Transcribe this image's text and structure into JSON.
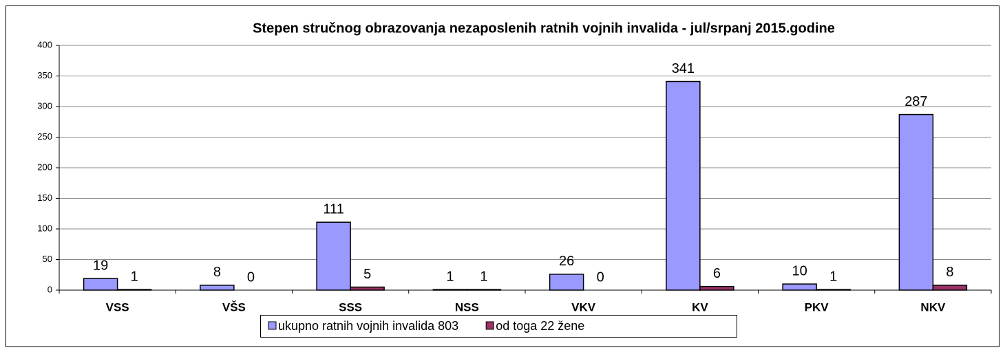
{
  "chart_data": {
    "type": "bar",
    "title": "Stepen stručnog obrazovanja nezaposlenih ratnih vojnih invalida - jul/srpanj 2015.godine",
    "categories": [
      "VSS",
      "VŠS",
      "SSS",
      "NSS",
      "VKV",
      "KV",
      "PKV",
      "NKV"
    ],
    "series": [
      {
        "name": "ukupno ratnih vojnih invalida 803",
        "color": "#9999ff",
        "values": [
          19,
          8,
          111,
          1,
          26,
          341,
          10,
          287
        ]
      },
      {
        "name": "od toga 22 žene",
        "color": "#993366",
        "values": [
          1,
          0,
          5,
          1,
          0,
          6,
          1,
          8
        ]
      }
    ],
    "ylim": [
      0,
      400
    ],
    "yticks": [
      0,
      50,
      100,
      150,
      200,
      250,
      300,
      350,
      400
    ],
    "grid": true,
    "legend": "bottom"
  }
}
